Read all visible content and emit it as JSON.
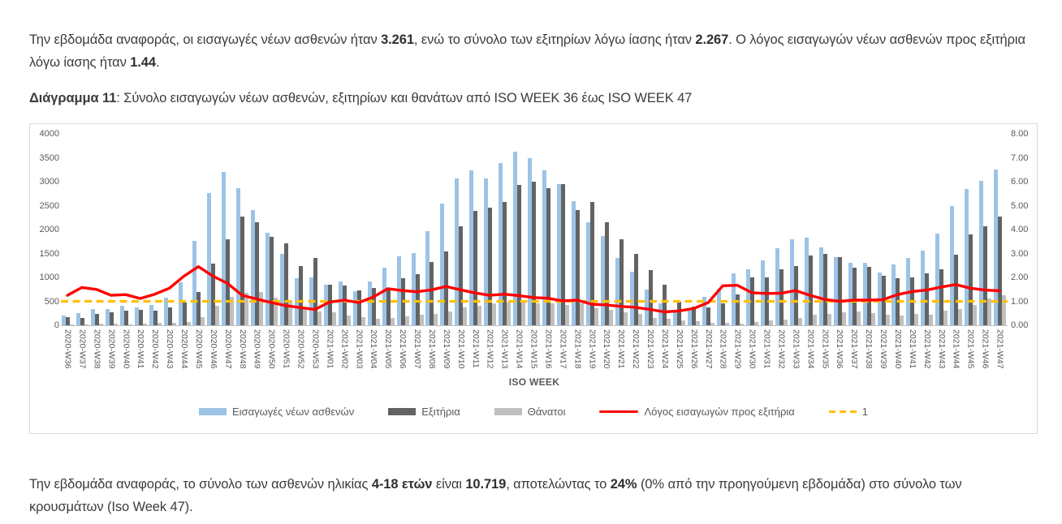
{
  "page": {
    "paragraph_top": {
      "segments": [
        {
          "t": "Την εβδομάδα αναφοράς, οι εισαγωγές νέων ασθενών ήταν ",
          "b": false
        },
        {
          "t": "3.261",
          "b": true
        },
        {
          "t": ", ενώ το σύνολο των εξιτηρίων λόγω ίασης ήταν ",
          "b": false
        },
        {
          "t": "2.267",
          "b": true
        },
        {
          "t": ".  Ο λόγος εισαγωγών νέων ασθενών προς εξιτήρια λόγω ίασης ήταν ",
          "b": false
        },
        {
          "t": "1.44",
          "b": true
        },
        {
          "t": ".",
          "b": false
        }
      ]
    },
    "figure_caption": {
      "label": "Διάγραμμα 11",
      "text": ": Σύνολο εισαγωγών νέων ασθενών, εξιτηρίων και θανάτων από ISO WEEK 36 έως ISO WEEK 47"
    },
    "paragraph_bottom": {
      "segments": [
        {
          "t": "Την εβδομάδα αναφοράς, το σύνολο των ασθενών ηλικίας ",
          "b": false
        },
        {
          "t": "4-18 ετών",
          "b": true
        },
        {
          "t": " είναι ",
          "b": false
        },
        {
          "t": "10.719",
          "b": true
        },
        {
          "t": ", αποτελώντας το ",
          "b": false
        },
        {
          "t": "24%",
          "b": true
        },
        {
          "t": " (0% από την προηγούμενη εβδομάδα) στο σύνολο των κρουσμάτων (Iso Week 47).",
          "b": false
        }
      ]
    }
  },
  "chart": {
    "left_axis_ticks": [
      "4000",
      "3500",
      "3000",
      "2500",
      "2000",
      "1500",
      "1000",
      "500",
      "0"
    ],
    "right_axis_ticks": [
      "8.00",
      "7.00",
      "6.00",
      "5.00",
      "4.00",
      "3.00",
      "2.00",
      "1.00",
      "0.00"
    ],
    "x_axis_title": "ISO WEEK",
    "colors": {
      "admissions": "#9DC3E6",
      "discharges": "#636363",
      "deaths": "#BFBFBF",
      "ratio_line": "#FF0000",
      "reference_line": "#FFC000",
      "axis_text": "#595959",
      "axis_line": "#BFBFBF",
      "border": "#D9D9D9"
    },
    "legend": [
      {
        "type": "bar",
        "color": "#9DC3E6",
        "label": "Εισαγωγές νέων ασθενών"
      },
      {
        "type": "bar",
        "color": "#636363",
        "label": "Εξιτήρια"
      },
      {
        "type": "bar",
        "color": "#BFBFBF",
        "label": "Θάνατοι"
      },
      {
        "type": "line",
        "color": "#FF0000",
        "label": "Λόγος εισαγωγών προς εξιτήρια"
      },
      {
        "type": "dash",
        "color": "#FFC000",
        "label": "1"
      }
    ]
  },
  "chart_data": {
    "type": "bar",
    "title": "Σύνολο εισαγωγών νέων ασθενών, εξιτηρίων και θανάτων από ISO WEEK 36 έως ISO WEEK 47",
    "xlabel": "ISO WEEK",
    "left_ylim": [
      0,
      4000
    ],
    "right_ylim": [
      0,
      8
    ],
    "grid": false,
    "legend_position": "bottom",
    "categories": [
      "2020-W36",
      "2020-W37",
      "2020-W38",
      "2020-W39",
      "2020-W40",
      "2020-W41",
      "2020-W42",
      "2020-W43",
      "2020-W44",
      "2020-W45",
      "2020-W46",
      "2020-W47",
      "2020-W48",
      "2020-W49",
      "2020-W50",
      "2020-W51",
      "2020-W52",
      "2020-W53",
      "2021-W01",
      "2021-W02",
      "2021-W03",
      "2021-W04",
      "2021-W05",
      "2021-W06",
      "2021-W07",
      "2021-W08",
      "2021-W09",
      "2021-W10",
      "2021-W11",
      "2021-W12",
      "2021-W13",
      "2021-W14",
      "2021-W15",
      "2021-W16",
      "2021-W17",
      "2021-W18",
      "2021-W19",
      "2021-W20",
      "2021-W21",
      "2021-W22",
      "2021-W23",
      "2021-W24",
      "2021-W25",
      "2021-W26",
      "2021-W27",
      "2021-W28",
      "2021-W29",
      "2021-W30",
      "2021-W31",
      "2021-W32",
      "2021-W33",
      "2021-W34",
      "2021-W35",
      "2021-W36",
      "2021-W37",
      "2021-W38",
      "2021-W39",
      "2021-W40",
      "2021-W41",
      "2021-W42",
      "2021-W43",
      "2021-W44",
      "2021-W45",
      "2021-W46",
      "2021-W47"
    ],
    "series": [
      {
        "name": "Εισαγωγές νέων ασθενών",
        "type": "bar",
        "axis": "left",
        "color": "#9DC3E6",
        "values": [
          200,
          260,
          345,
          340,
          400,
          370,
          420,
          580,
          900,
          1760,
          2760,
          3200,
          2870,
          2410,
          1930,
          1500,
          990,
          1000,
          840,
          915,
          705,
          915,
          1200,
          1435,
          1505,
          1965,
          2535,
          3065,
          3230,
          3065,
          3395,
          3630,
          3490,
          3230,
          2955,
          2590,
          2155,
          1870,
          1415,
          1125,
          740,
          465,
          300,
          300,
          590,
          765,
          1085,
          1175,
          1355,
          1610,
          1805,
          1835,
          1625,
          1430,
          1310,
          1310,
          1100,
          1270,
          1410,
          1565,
          1910,
          2500,
          2840,
          3025,
          3261
        ]
      },
      {
        "name": "Εξιτήρια",
        "type": "bar",
        "axis": "left",
        "color": "#636363",
        "values": [
          165,
          160,
          230,
          265,
          310,
          320,
          310,
          380,
          475,
          700,
          1280,
          1790,
          2270,
          2150,
          1855,
          1710,
          1230,
          1400,
          850,
          830,
          725,
          775,
          760,
          990,
          1075,
          1325,
          1550,
          2065,
          2390,
          2460,
          2570,
          2930,
          3000,
          2870,
          2945,
          2415,
          2580,
          2155,
          1790,
          1495,
          1145,
          855,
          485,
          385,
          365,
          465,
          650,
          1000,
          1000,
          1170,
          1245,
          1460,
          1495,
          1430,
          1200,
          1215,
          1030,
          990,
          1000,
          1090,
          1175,
          1480,
          1890,
          2075,
          2267
        ]
      },
      {
        "name": "Θάνατοι",
        "type": "bar",
        "axis": "left",
        "color": "#BFBFBF",
        "values": [
          15,
          20,
          30,
          30,
          25,
          30,
          50,
          50,
          60,
          175,
          400,
          590,
          680,
          700,
          580,
          510,
          370,
          295,
          270,
          200,
          170,
          140,
          155,
          185,
          220,
          240,
          290,
          375,
          400,
          450,
          470,
          470,
          460,
          460,
          430,
          450,
          360,
          320,
          265,
          230,
          155,
          130,
          110,
          80,
          45,
          55,
          30,
          70,
          95,
          125,
          160,
          215,
          235,
          265,
          280,
          255,
          225,
          200,
          235,
          225,
          310,
          340,
          425,
          565,
          620
        ]
      },
      {
        "name": "Λόγος εισαγωγών προς εξιτήρια",
        "type": "line",
        "axis": "right",
        "color": "#FF0000",
        "values": [
          1.25,
          1.58,
          1.5,
          1.25,
          1.28,
          1.12,
          1.3,
          1.55,
          2.05,
          2.45,
          2.05,
          1.75,
          1.25,
          1.1,
          0.95,
          0.82,
          0.74,
          0.66,
          0.97,
          1.05,
          0.95,
          1.18,
          1.53,
          1.45,
          1.4,
          1.48,
          1.62,
          1.48,
          1.35,
          1.25,
          1.3,
          1.24,
          1.16,
          1.13,
          1.02,
          1.05,
          0.88,
          0.85,
          0.79,
          0.75,
          0.66,
          0.56,
          0.6,
          0.7,
          0.95,
          1.65,
          1.67,
          1.36,
          1.33,
          1.34,
          1.45,
          1.25,
          1.08,
          1.0,
          1.05,
          1.05,
          1.07,
          1.28,
          1.41,
          1.47,
          1.6,
          1.7,
          1.55,
          1.47,
          1.44
        ]
      },
      {
        "name": "1",
        "type": "dashed-line",
        "axis": "right",
        "color": "#FFC000",
        "constant": 1
      }
    ]
  }
}
